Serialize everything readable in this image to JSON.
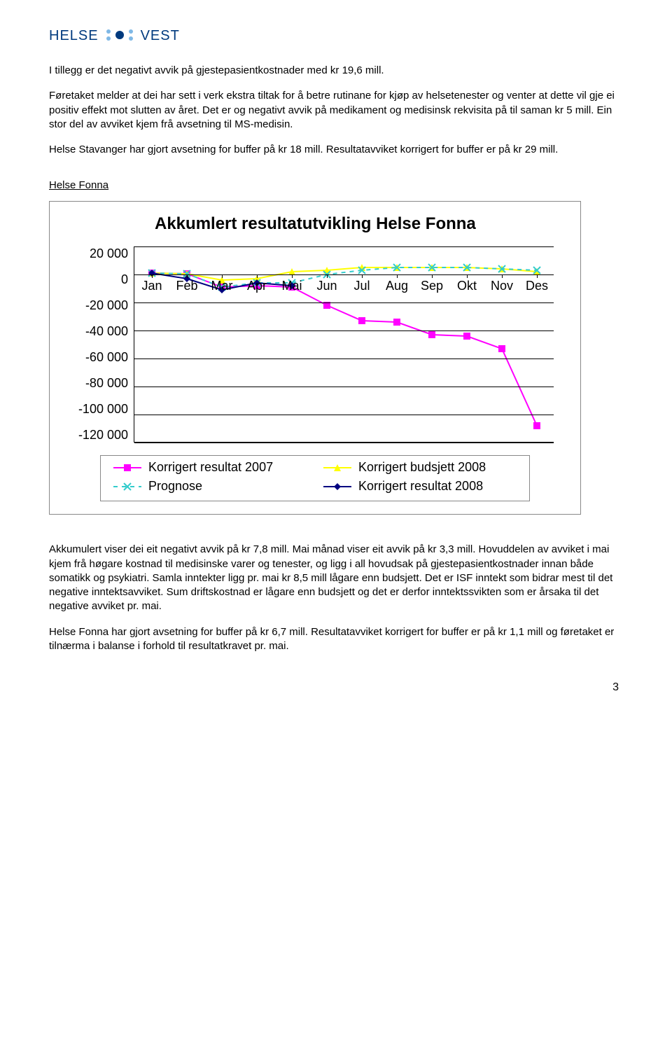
{
  "logo": {
    "left": "HELSE",
    "right": "VEST"
  },
  "paragraphs": {
    "p1": "I tillegg er det negativt avvik på gjestepasientkostnader med kr 19,6 mill.",
    "p2": "Føretaket melder at dei har sett i verk ekstra tiltak for å betre rutinane for kjøp av helsetenester og venter at dette vil gje ei positiv effekt mot slutten av året. Det er og negativt avvik på medikament og medisinsk rekvisita på til saman kr 5 mill. Ein stor del av avviket kjem frå avsetning til MS-medisin.",
    "p3": "Helse Stavanger har gjort avsetning for buffer på kr 18 mill. Resultatavviket korrigert for buffer er på kr 29 mill.",
    "p4": "Akkumulert viser dei eit negativt avvik på kr 7,8 mill. Mai månad viser eit avvik på kr 3,3 mill. Hovuddelen av avviket i mai kjem frå høgare kostnad til medisinske varer og tenester, og ligg i all hovudsak på gjestepasientkostnader innan både somatikk og psykiatri. Samla inntekter ligg pr. mai kr 8,5 mill lågare enn budsjett. Det er ISF inntekt som bidrar mest til det negative inntektsavviket. Sum driftskostnad er lågare enn budsjett og det er derfor inntektssvikten som er årsaka til det negative avviket pr. mai.",
    "p5": "Helse Fonna har gjort avsetning for buffer på kr 6,7 mill. Resultatavviket korrigert for buffer er på kr 1,1 mill og føretaket er tilnærma i balanse i forhold til resultatkravet pr. mai."
  },
  "section_heading": "Helse Fonna",
  "chart": {
    "type": "line",
    "title": "Akkumlert resultatutvikling Helse Fonna",
    "categories": [
      "Jan",
      "Feb",
      "Mar",
      "Apr",
      "Mai",
      "Jun",
      "Jul",
      "Aug",
      "Sep",
      "Okt",
      "Nov",
      "Des"
    ],
    "ylim": [
      -120000,
      20000
    ],
    "ytick_step": 20000,
    "yticks": [
      "20 000",
      "0",
      "-20 000",
      "-40 000",
      "-60 000",
      "-80 000",
      "-100 000",
      "-120 000"
    ],
    "background_color": "#ffffff",
    "grid_color": "#000000",
    "axis_fontsize": 18,
    "title_fontsize": 24,
    "series": {
      "korrigert_resultat_2007": {
        "label": "Korrigert resultat 2007",
        "color": "#ff00ff",
        "marker": "square",
        "line_width": 2,
        "values": [
          1000,
          500,
          -9000,
          -8000,
          -9000,
          -22000,
          -33000,
          -34000,
          -43000,
          -44000,
          -53000,
          -108000
        ]
      },
      "korrigert_budsjett_2008": {
        "label": "Korrigert budsjett 2008",
        "color": "#ffff00",
        "marker": "triangle",
        "line_width": 2,
        "values": [
          1000,
          500,
          -4000,
          -3000,
          2000,
          3000,
          5000,
          5000,
          5000,
          5000,
          4000,
          2000
        ]
      },
      "prognose": {
        "label": "Prognose",
        "color": "#33cccc",
        "marker": "x",
        "line_width": 2,
        "dash": "6 6",
        "values": [
          1000,
          500,
          -9000,
          -6000,
          -6000,
          0,
          3000,
          5000,
          5000,
          5000,
          4000,
          3000
        ]
      },
      "korrigert_resultat_2008": {
        "label": "Korrigert resultat 2008",
        "color": "#000080",
        "marker": "diamond",
        "line_width": 2,
        "values": [
          1000,
          -3000,
          -11000,
          -6000,
          -8000
        ]
      }
    },
    "legend_order": [
      "korrigert_resultat_2007",
      "korrigert_budsjett_2008",
      "prognose",
      "korrigert_resultat_2008"
    ]
  },
  "page_number": "3"
}
